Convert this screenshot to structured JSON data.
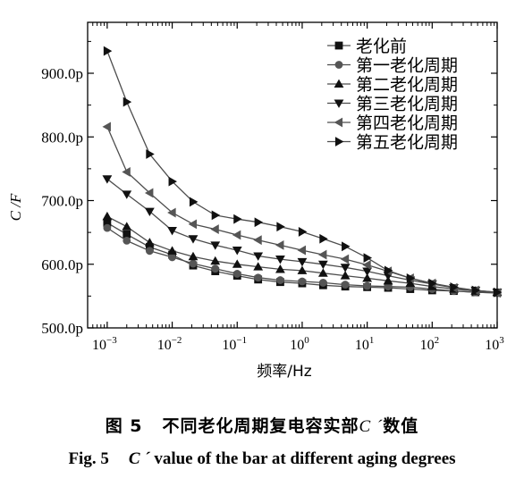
{
  "chart_data": {
    "type": "line",
    "x_scale": "log",
    "xlabel": "频率/Hz",
    "ylabel": "C /F",
    "xlim": [
      0.0005,
      1000
    ],
    "ylim": [
      500,
      980
    ],
    "x_ticks": [
      {
        "value": 0.001,
        "base": "10",
        "exp": "−3"
      },
      {
        "value": 0.01,
        "base": "10",
        "exp": "−2"
      },
      {
        "value": 0.1,
        "base": "10",
        "exp": "−1"
      },
      {
        "value": 1,
        "base": "10",
        "exp": "0"
      },
      {
        "value": 10,
        "base": "10",
        "exp": "1"
      },
      {
        "value": 100,
        "base": "10",
        "exp": "2"
      },
      {
        "value": 1000,
        "base": "10",
        "exp": "3"
      }
    ],
    "y_ticks": [
      {
        "value": 500,
        "label": "500.0p"
      },
      {
        "value": 600,
        "label": "600.0p"
      },
      {
        "value": 700,
        "label": "700.0p"
      },
      {
        "value": 800,
        "label": "800.0p"
      },
      {
        "value": 900,
        "label": "900.0p"
      }
    ],
    "x": [
      0.001,
      0.002,
      0.0045,
      0.01,
      0.021,
      0.046,
      0.1,
      0.21,
      0.46,
      1,
      2.1,
      4.6,
      10,
      21,
      46,
      100,
      215,
      464,
      1000
    ],
    "series": [
      {
        "name": "老化前",
        "marker": "square",
        "values": [
          665,
          647,
          627,
          615,
          598,
          589,
          582,
          576,
          572,
          570,
          567,
          565,
          564,
          563,
          561,
          559,
          558,
          556,
          555
        ]
      },
      {
        "name": "第一老化周期",
        "marker": "circle",
        "values": [
          657,
          637,
          621,
          611,
          601,
          593,
          585,
          579,
          575,
          573,
          571,
          568,
          566,
          565,
          564,
          561,
          558,
          556,
          555
        ]
      },
      {
        "name": "第二老化周期",
        "marker": "triangle-up",
        "values": [
          675,
          659,
          634,
          621,
          612,
          605,
          600,
          596,
          592,
          590,
          586,
          582,
          578,
          574,
          570,
          565,
          561,
          558,
          556
        ]
      },
      {
        "name": "第三老化周期",
        "marker": "triangle-down",
        "values": [
          734,
          710,
          683,
          653,
          640,
          630,
          622,
          613,
          608,
          604,
          600,
          595,
          589,
          582,
          575,
          569,
          563,
          559,
          556
        ]
      },
      {
        "name": "第四老化周期",
        "marker": "triangle-left",
        "values": [
          816,
          745,
          712,
          681,
          663,
          655,
          646,
          638,
          630,
          622,
          615,
          608,
          599,
          589,
          578,
          570,
          563,
          559,
          555
        ]
      },
      {
        "name": "第五老化周期",
        "marker": "triangle-right",
        "values": [
          935,
          855,
          773,
          730,
          698,
          677,
          671,
          666,
          659,
          651,
          640,
          628,
          610,
          590,
          578,
          570,
          564,
          559,
          556
        ]
      }
    ],
    "legend_position": "top-right",
    "grid": false
  },
  "caption": {
    "cn_prefix": "图 5",
    "cn_text": "不同老化周期复电容实部",
    "cn_symbol": "C ´",
    "cn_suffix": "数值",
    "en_prefix": "Fig. 5",
    "en_symbol": "C ´",
    "en_text": "value of the bar at different aging degrees"
  },
  "colors": {
    "line": "#4d4d4d",
    "marker": "#111111",
    "axis": "#000000"
  }
}
